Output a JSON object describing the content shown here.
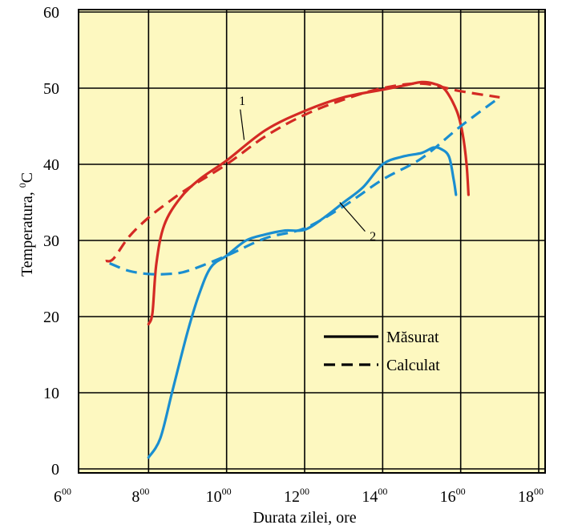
{
  "chart_data": {
    "type": "line",
    "xlabel": "Durata zilei, ore",
    "ylabel_main": "Temperatura, ",
    "ylabel_sup": "0",
    "ylabel_unit": "C",
    "xlim": [
      6,
      18.5
    ],
    "ylim": [
      -2,
      60
    ],
    "x_ticks": [
      {
        "value": 6,
        "hour": "6",
        "min": "00"
      },
      {
        "value": 8,
        "hour": "8",
        "min": "00"
      },
      {
        "value": 10,
        "hour": "10",
        "min": "00"
      },
      {
        "value": 12,
        "hour": "12",
        "min": "00"
      },
      {
        "value": 14,
        "hour": "14",
        "min": "00"
      },
      {
        "value": 16,
        "hour": "16",
        "min": "00"
      },
      {
        "value": 18,
        "hour": "18",
        "min": "00"
      }
    ],
    "y_ticks": [
      0,
      10,
      20,
      30,
      40,
      50,
      60
    ],
    "grid": true,
    "plot_background": "#fdf8c0",
    "legend": {
      "position": "bottom-right",
      "entries": [
        {
          "label": "Măsurat",
          "style": "solid"
        },
        {
          "label": "Calculat",
          "style": "dashed"
        }
      ]
    },
    "series": [
      {
        "id": "1",
        "style": "solid",
        "color": "#d42a24",
        "points": [
          [
            8.0,
            19.0
          ],
          [
            8.1,
            20.5
          ],
          [
            8.2,
            27.0
          ],
          [
            8.4,
            32.0
          ],
          [
            8.8,
            35.5
          ],
          [
            9.3,
            38.0
          ],
          [
            10.0,
            40.5
          ],
          [
            11.0,
            44.5
          ],
          [
            12.0,
            47.0
          ],
          [
            13.0,
            48.8
          ],
          [
            14.0,
            49.8
          ],
          [
            14.6,
            50.4
          ],
          [
            15.0,
            50.8
          ],
          [
            15.3,
            50.6
          ],
          [
            15.6,
            49.8
          ],
          [
            15.9,
            47.0
          ],
          [
            16.05,
            44.0
          ],
          [
            16.15,
            40.0
          ],
          [
            16.2,
            36.0
          ]
        ]
      },
      {
        "id": "1",
        "style": "dashed",
        "color": "#d42a24",
        "points": [
          [
            6.9,
            27.3
          ],
          [
            7.1,
            27.6
          ],
          [
            7.5,
            30.5
          ],
          [
            8.0,
            33.0
          ],
          [
            8.5,
            35.0
          ],
          [
            9.0,
            36.8
          ],
          [
            10.0,
            40.0
          ],
          [
            11.0,
            43.7
          ],
          [
            12.0,
            46.5
          ],
          [
            13.0,
            48.5
          ],
          [
            14.0,
            50.0
          ],
          [
            15.0,
            50.6
          ],
          [
            16.0,
            49.6
          ],
          [
            17.0,
            48.8
          ]
        ]
      },
      {
        "id": "2",
        "style": "solid",
        "color": "#1a8ed0",
        "points": [
          [
            8.0,
            1.5
          ],
          [
            8.3,
            4.0
          ],
          [
            8.6,
            10.0
          ],
          [
            9.0,
            18.0
          ],
          [
            9.3,
            23.0
          ],
          [
            9.6,
            26.5
          ],
          [
            10.0,
            28.0
          ],
          [
            10.5,
            30.0
          ],
          [
            11.0,
            30.8
          ],
          [
            11.5,
            31.3
          ],
          [
            12.0,
            31.4
          ],
          [
            12.5,
            33.0
          ],
          [
            13.0,
            35.0
          ],
          [
            13.5,
            37.0
          ],
          [
            14.0,
            40.0
          ],
          [
            14.5,
            41.0
          ],
          [
            15.0,
            41.5
          ],
          [
            15.3,
            42.2
          ],
          [
            15.5,
            42.0
          ],
          [
            15.7,
            41.0
          ],
          [
            15.82,
            38.0
          ],
          [
            15.88,
            36.0
          ]
        ]
      },
      {
        "id": "2",
        "style": "dashed",
        "color": "#1a8ed0",
        "points": [
          [
            7.0,
            27.0
          ],
          [
            7.5,
            26.0
          ],
          [
            8.0,
            25.6
          ],
          [
            8.5,
            25.6
          ],
          [
            9.0,
            26.0
          ],
          [
            10.0,
            28.0
          ],
          [
            11.0,
            30.3
          ],
          [
            12.0,
            31.6
          ],
          [
            13.0,
            34.5
          ],
          [
            14.0,
            38.0
          ],
          [
            15.0,
            40.8
          ],
          [
            16.0,
            45.0
          ],
          [
            17.0,
            48.8
          ]
        ]
      }
    ],
    "annotations": [
      {
        "text": "1",
        "series": "1"
      },
      {
        "text": "2",
        "series": "2"
      }
    ]
  }
}
